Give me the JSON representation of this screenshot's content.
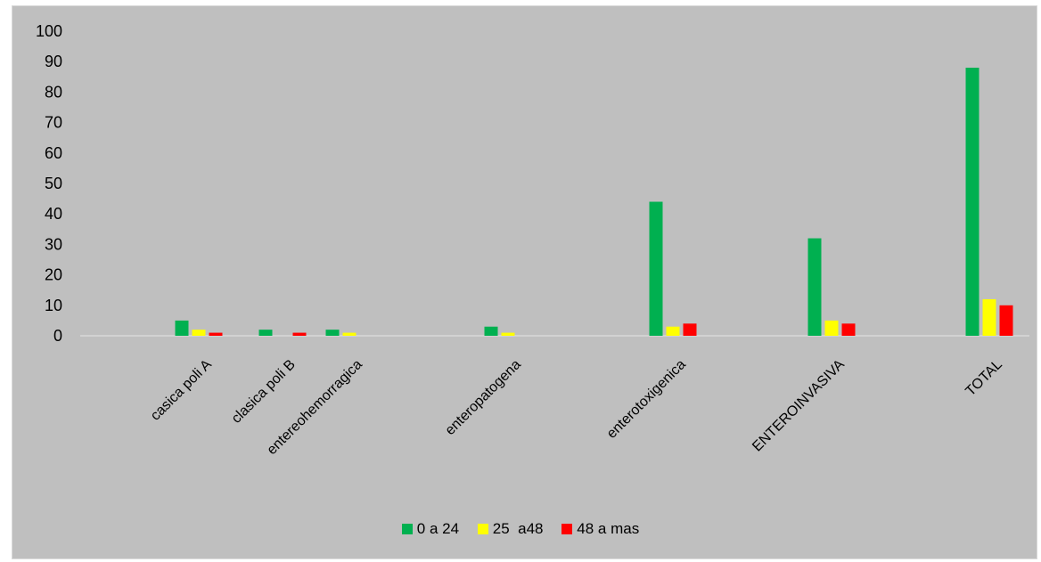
{
  "chart_data": {
    "type": "bar",
    "title": "",
    "xlabel": "",
    "ylabel": "",
    "ylim": [
      0,
      100
    ],
    "yticks": [
      0,
      10,
      20,
      30,
      40,
      50,
      60,
      70,
      80,
      90,
      100
    ],
    "grid": false,
    "legend_position": "bottom",
    "categories": [
      "casica poli A",
      "clasica poli B",
      "entereohemorragica",
      "enteropatogena",
      "enterotoxigenica",
      "ENTEROINVASIVA",
      "TOTAL"
    ],
    "series": [
      {
        "name": "0 a 24",
        "color": "#00b050",
        "values": [
          5,
          2,
          2,
          3,
          44,
          32,
          88
        ]
      },
      {
        "name": "25  a48",
        "color": "#ffff00",
        "values": [
          2,
          0,
          1,
          1,
          3,
          5,
          12
        ]
      },
      {
        "name": "48 a mas",
        "color": "#ff0000",
        "values": [
          1,
          1,
          0,
          0,
          4,
          4,
          10
        ]
      }
    ]
  }
}
